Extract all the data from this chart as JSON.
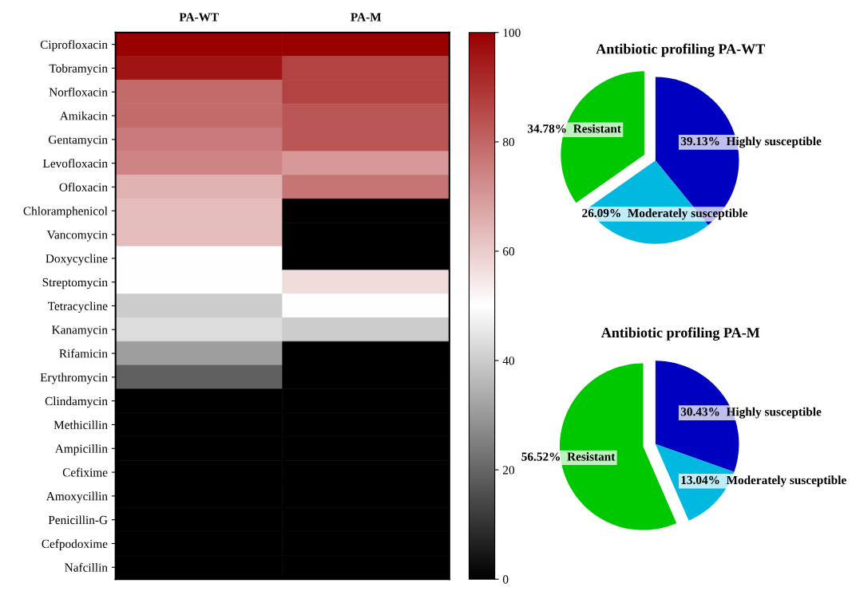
{
  "chart_data": [
    {
      "type": "heatmap",
      "categories": [
        "PA-WT",
        "PA-M"
      ],
      "y_categories": [
        "Ciprofloxacin",
        "Tobramycin",
        "Norfloxacin",
        "Amikacin",
        "Gentamycin",
        "Levofloxacin",
        "Ofloxacin",
        "Chloramphenicol",
        "Vancomycin",
        "Doxycycline",
        "Streptomycin",
        "Tetracycline",
        "Kanamycin",
        "Rifamicin",
        "Erythromycin",
        "Clindamycin",
        "Methicillin",
        "Ampicillin",
        "Cefixime",
        "Amoxycillin",
        "Penicillin-G",
        "Cefpodoxime",
        "Nafcillin"
      ],
      "cells": [
        [
          100,
          100
        ],
        [
          96,
          87
        ],
        [
          79,
          87
        ],
        [
          79,
          83
        ],
        [
          76,
          83
        ],
        [
          74,
          70
        ],
        [
          65,
          77
        ],
        [
          63,
          0
        ],
        [
          63,
          0
        ],
        [
          50,
          0
        ],
        [
          50,
          57
        ],
        [
          40,
          50
        ],
        [
          43,
          40
        ],
        [
          31,
          0
        ],
        [
          19,
          0
        ],
        [
          0,
          0
        ],
        [
          0,
          0
        ],
        [
          0,
          0
        ],
        [
          0,
          0
        ],
        [
          0,
          0
        ],
        [
          0,
          0
        ],
        [
          0,
          0
        ],
        [
          0,
          0
        ]
      ],
      "clim": [
        0,
        100
      ],
      "cticks": [
        0,
        20,
        40,
        60,
        80,
        100
      ]
    },
    {
      "type": "pie",
      "title": "Antibiotic profiling PA-WT",
      "categories": [
        "Highly susceptible",
        "Moderately susceptible",
        "Resistant"
      ],
      "values": [
        39.13,
        26.09,
        34.78
      ],
      "colors": [
        "#0000c0",
        "#00b8e0",
        "#00c800"
      ],
      "value_labels": [
        "39.13%",
        "26.09%",
        "34.78%"
      ]
    },
    {
      "type": "pie",
      "title": "Antibiotic profiling PA-M",
      "categories": [
        "Highly susceptible",
        "Moderately susceptible",
        "Resistant"
      ],
      "values": [
        30.43,
        13.04,
        56.52
      ],
      "colors": [
        "#0000c0",
        "#00b8e0",
        "#00c800"
      ],
      "value_labels": [
        "30.43%",
        "13.04%",
        "56.52%"
      ]
    }
  ]
}
